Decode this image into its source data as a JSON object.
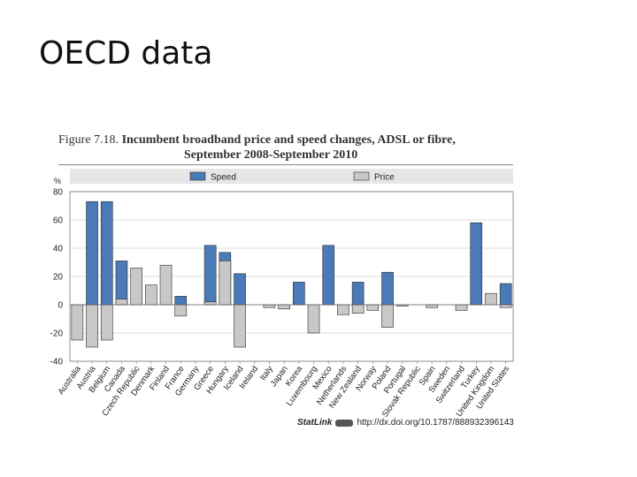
{
  "slide": {
    "title": "OECD data"
  },
  "figure": {
    "number": "Figure 7.18.",
    "heading": "Incumbent broadband price and speed changes, ADSL or fibre,",
    "subheading": "September 2008-September 2010",
    "statlink_label": "StatLink",
    "statlink_url": "http://dx.doi.org/10.1787/888932396143"
  },
  "colors": {
    "speed": "#4a7ab8",
    "price": "#c8c8c8",
    "edge": "#2b2b2b"
  },
  "chart_data": {
    "type": "bar",
    "title": "Incumbent broadband price and speed changes, ADSL or fibre, September 2008-September 2010",
    "ylabel": "%",
    "xlabel": "",
    "ylim": [
      -40,
      80
    ],
    "yticks": [
      80,
      60,
      40,
      20,
      0,
      -20,
      -40
    ],
    "legend_position": "top",
    "categories": [
      "Australia",
      "Austria",
      "Belgium",
      "Canada",
      "Czech Republic",
      "Denmark",
      "Finland",
      "France",
      "Germany",
      "Greece",
      "Hungary",
      "Iceland",
      "Ireland",
      "Italy",
      "Japan",
      "Korea",
      "Luxembourg",
      "Mexico",
      "Netherlands",
      "New Zealand",
      "Norway",
      "Poland",
      "Portugal",
      "Slovak Republic",
      "Spain",
      "Sweden",
      "Switzerland",
      "Turkey",
      "United Kingdom",
      "United States"
    ],
    "series": [
      {
        "name": "Speed",
        "values": [
          0,
          73,
          73,
          31,
          0,
          0,
          0,
          6,
          0,
          42,
          37,
          22,
          0,
          0,
          0,
          16,
          0,
          42,
          0,
          16,
          0,
          23,
          0,
          0,
          0,
          0,
          0,
          58,
          0,
          15
        ]
      },
      {
        "name": "Price",
        "values": [
          -25,
          -30,
          -25,
          4,
          26,
          14,
          28,
          -8,
          0,
          2,
          31,
          -30,
          0,
          -2,
          -3,
          0,
          -20,
          0,
          -7,
          -6,
          -4,
          -16,
          -1,
          0,
          -2,
          0,
          -4,
          0,
          8,
          -2
        ]
      }
    ]
  }
}
